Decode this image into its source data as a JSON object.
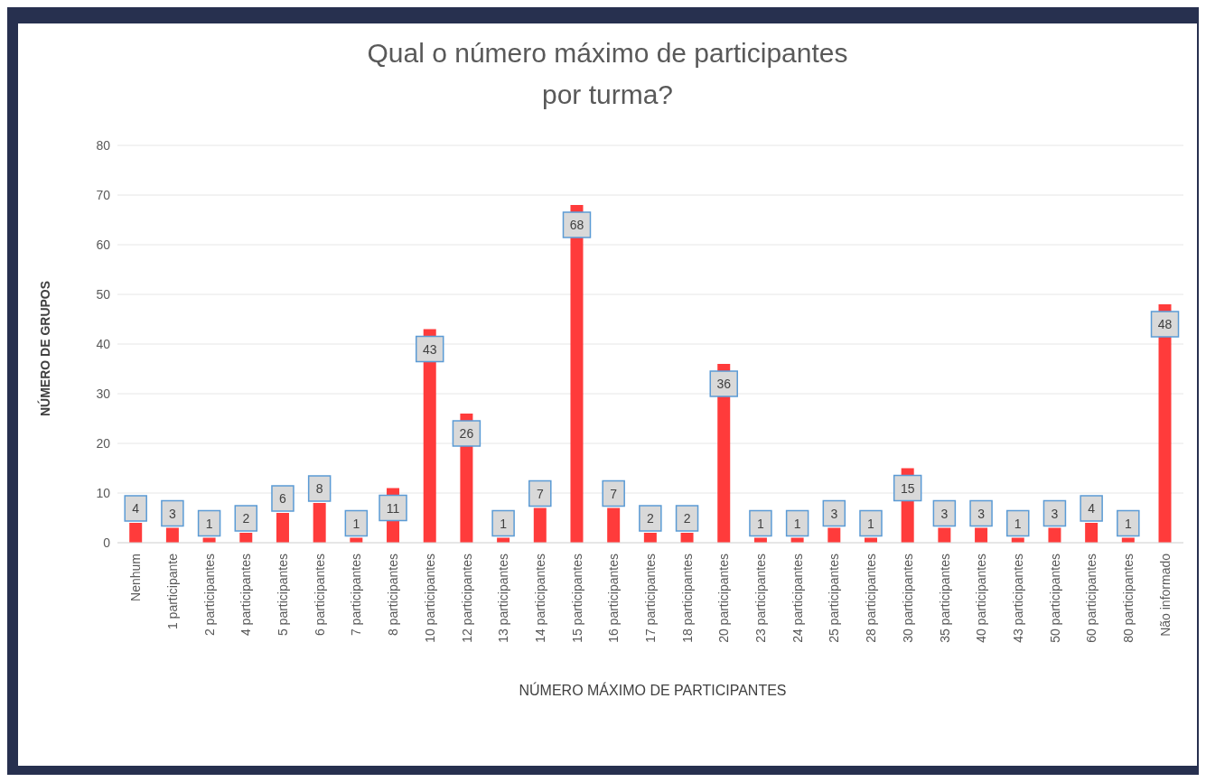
{
  "chart_data": {
    "type": "bar",
    "title": "Qual o número máximo de participantes por turma?",
    "xlabel": "NÚMERO MÁXIMO DE PARTICIPANTES",
    "ylabel": "NÚMERO DE GRUPOS",
    "categories": [
      "Nenhum",
      "1 participante",
      "2 participantes",
      "4 participantes",
      "5 participantes",
      "6 participantes",
      "7 participantes",
      "8 participantes",
      "10 participantes",
      "12 participantes",
      "13 participantes",
      "14 participantes",
      "15 participantes",
      "16 participantes",
      "17 participantes",
      "18 participantes",
      "20 participantes",
      "23 participantes",
      "24 participantes",
      "25 participantes",
      "28 participantes",
      "30 participantes",
      "35 participantes",
      "40 participantes",
      "43 participantes",
      "50 participantes",
      "60 participantes",
      "80 participantes",
      "Não informado"
    ],
    "values": [
      4,
      3,
      1,
      2,
      6,
      8,
      1,
      11,
      43,
      26,
      1,
      7,
      68,
      7,
      2,
      2,
      36,
      1,
      1,
      3,
      1,
      15,
      3,
      3,
      1,
      3,
      4,
      1,
      48
    ],
    "color": "#ff3b3b",
    "ylim": [
      0,
      80
    ],
    "yticks": [
      0,
      10,
      20,
      30,
      40,
      50,
      60,
      70,
      80
    ],
    "grid": "y",
    "data_labels": true
  }
}
